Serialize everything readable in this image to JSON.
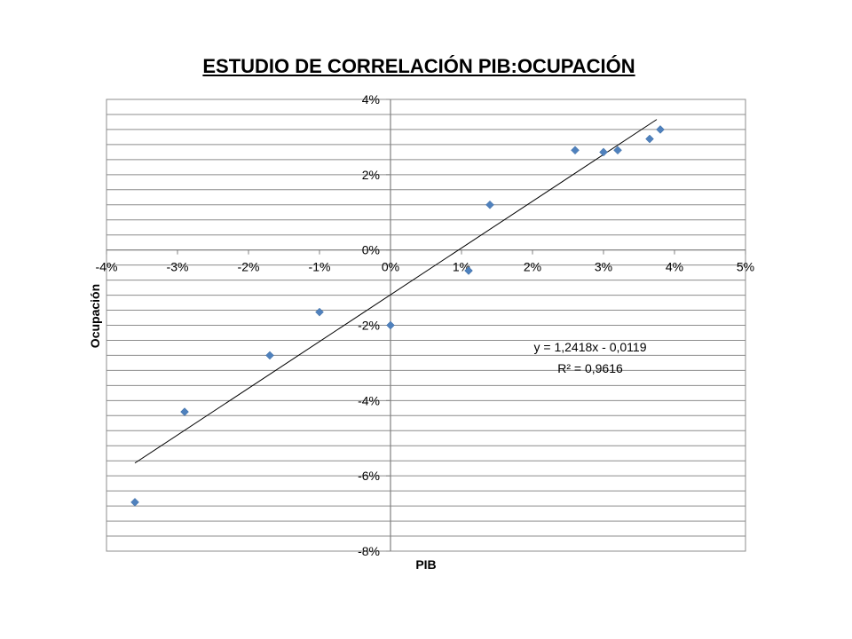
{
  "chart_data": {
    "type": "scatter",
    "title": "ESTUDIO DE CORRELACIÓN PIB:OCUPACIÓN",
    "xlabel": "PIB",
    "ylabel": "Ocupación",
    "xlim": [
      -4,
      5
    ],
    "ylim": [
      -8,
      4
    ],
    "x_ticks": [
      -4,
      -3,
      -2,
      -1,
      0,
      1,
      2,
      3,
      4,
      5
    ],
    "y_ticks": [
      -8,
      -6,
      -4,
      -2,
      0,
      2,
      4
    ],
    "x_tick_labels": [
      "-4%",
      "-3%",
      "-2%",
      "-1%",
      "0%",
      "1%",
      "2%",
      "3%",
      "4%",
      "5%"
    ],
    "y_tick_labels": [
      "-8%",
      "-6%",
      "-4%",
      "-2%",
      "0%",
      "2%",
      "4%"
    ],
    "grid": "horizontal",
    "points": [
      {
        "x": -3.6,
        "y": -6.7
      },
      {
        "x": -2.9,
        "y": -4.3
      },
      {
        "x": -1.7,
        "y": -2.8
      },
      {
        "x": -1.0,
        "y": -1.65
      },
      {
        "x": 0.0,
        "y": -2.0
      },
      {
        "x": 1.1,
        "y": -0.55
      },
      {
        "x": 1.4,
        "y": 1.2
      },
      {
        "x": 2.6,
        "y": 2.65
      },
      {
        "x": 3.0,
        "y": 2.6
      },
      {
        "x": 3.2,
        "y": 2.65
      },
      {
        "x": 3.65,
        "y": 2.95
      },
      {
        "x": 3.8,
        "y": 3.2
      }
    ],
    "trendline": {
      "slope": 1.2418,
      "intercept": -0.0119,
      "x_range": [
        -3.6,
        3.75
      ],
      "equation": "y = 1,2418x - 0,0119",
      "r_squared": "R² = 0,9616"
    },
    "colors": {
      "marker": "#4f81bd",
      "trendline": "#000000",
      "grid": "#8c8c8c"
    }
  }
}
